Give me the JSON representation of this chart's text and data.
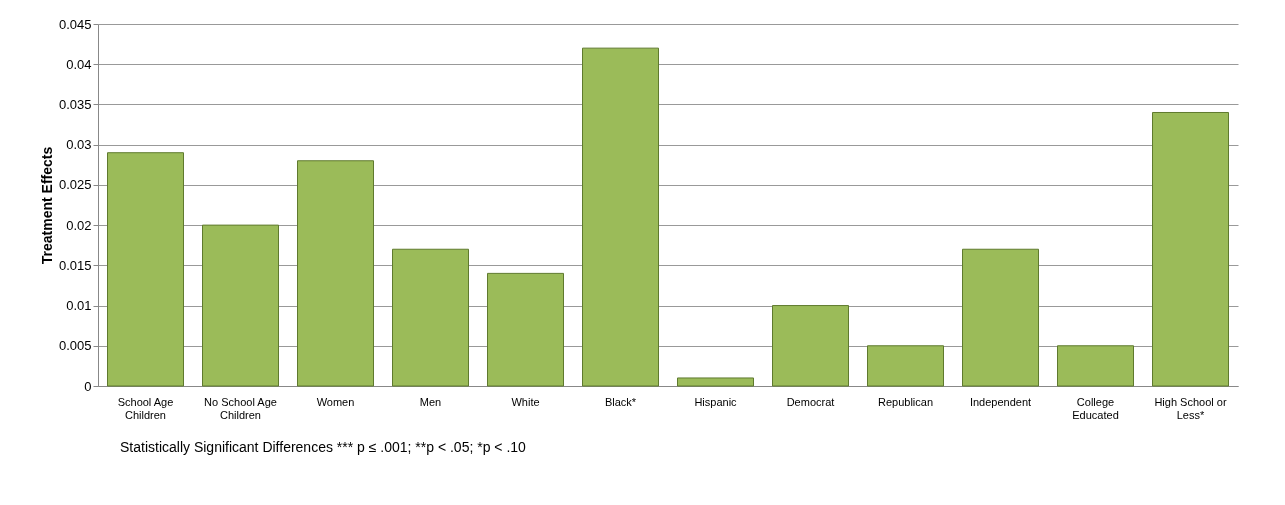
{
  "chart_data": {
    "type": "bar",
    "ylabel": "Treatment Effects",
    "categories": [
      "School Age Children",
      "No School Age Children",
      "Women",
      "Men",
      "White",
      "Black*",
      "Hispanic",
      "Democrat",
      "Republican",
      "Independent",
      "College Educated",
      "High School or Less*"
    ],
    "values": [
      0.029,
      0.02,
      0.028,
      0.017,
      0.014,
      0.042,
      0.001,
      0.01,
      0.005,
      0.017,
      0.005,
      0.034
    ],
    "color": "#9bbb59",
    "ylim": [
      0,
      0.045
    ],
    "yticks": [
      0,
      0.005,
      0.01,
      0.015,
      0.02,
      0.025,
      0.03,
      0.035,
      0.04,
      0.045
    ],
    "grid": "y",
    "annotations": [
      "Statistically Significant Differences *** p ≤ .001; **p < .05; *p < .10"
    ]
  }
}
